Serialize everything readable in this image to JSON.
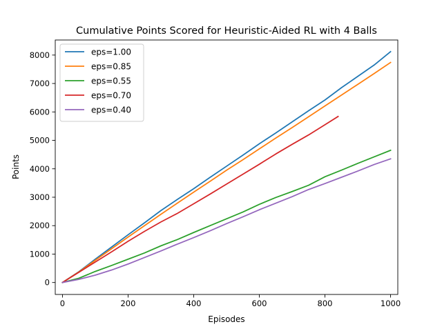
{
  "chart_data": {
    "type": "line",
    "title": "Cumulative Points Scored for Heuristic-Aided RL with 4 Balls",
    "xlabel": "Episodes",
    "ylabel": "Points",
    "xlim": [
      -22,
      1022
    ],
    "ylim": [
      -420,
      8530
    ],
    "xticks": [
      0,
      200,
      400,
      600,
      800,
      1000
    ],
    "xtick_labels": [
      "0",
      "200",
      "400",
      "600",
      "800",
      "1000"
    ],
    "yticks": [
      0,
      1000,
      2000,
      3000,
      4000,
      5000,
      6000,
      7000,
      8000
    ],
    "ytick_labels": [
      "0",
      "1000",
      "2000",
      "3000",
      "4000",
      "5000",
      "6000",
      "7000",
      "8000"
    ],
    "grid": false,
    "legend_position": "upper-left",
    "series": [
      {
        "name": "eps=1.00",
        "color": "#1f77b4",
        "x": [
          0,
          50,
          100,
          150,
          200,
          250,
          300,
          350,
          400,
          450,
          500,
          550,
          600,
          650,
          700,
          750,
          800,
          850,
          900,
          950,
          1000
        ],
        "y": [
          0,
          380,
          820,
          1250,
          1680,
          2100,
          2530,
          2920,
          3300,
          3700,
          4090,
          4480,
          4880,
          5260,
          5650,
          6040,
          6420,
          6850,
          7250,
          7650,
          8120
        ]
      },
      {
        "name": "eps=0.85",
        "color": "#ff7f0e",
        "x": [
          0,
          50,
          100,
          150,
          200,
          250,
          300,
          350,
          400,
          450,
          500,
          550,
          600,
          650,
          700,
          750,
          800,
          850,
          900,
          950,
          1000
        ],
        "y": [
          0,
          370,
          780,
          1190,
          1600,
          2000,
          2400,
          2790,
          3180,
          3560,
          3950,
          4320,
          4700,
          5080,
          5450,
          5830,
          6210,
          6590,
          6970,
          7350,
          7740
        ]
      },
      {
        "name": "eps=0.55",
        "color": "#2ca02c",
        "x": [
          0,
          50,
          100,
          150,
          200,
          250,
          300,
          350,
          400,
          450,
          500,
          550,
          600,
          650,
          700,
          750,
          800,
          850,
          900,
          950,
          1000
        ],
        "y": [
          0,
          150,
          390,
          600,
          820,
          1040,
          1290,
          1510,
          1760,
          2000,
          2240,
          2480,
          2750,
          2990,
          3200,
          3420,
          3720,
          3950,
          4190,
          4420,
          4650
        ]
      },
      {
        "name": "eps=0.70",
        "color": "#d62728",
        "x": [
          0,
          50,
          100,
          150,
          200,
          250,
          300,
          350,
          400,
          450,
          500,
          550,
          600,
          650,
          700,
          750,
          800,
          840
        ],
        "y": [
          0,
          360,
          720,
          1080,
          1450,
          1800,
          2130,
          2430,
          2770,
          3110,
          3460,
          3810,
          4160,
          4520,
          4860,
          5190,
          5550,
          5840
        ]
      },
      {
        "name": "eps=0.40",
        "color": "#9467bd",
        "x": [
          0,
          50,
          100,
          150,
          200,
          250,
          300,
          350,
          400,
          450,
          500,
          550,
          600,
          650,
          700,
          750,
          800,
          850,
          900,
          950,
          1000
        ],
        "y": [
          0,
          110,
          260,
          440,
          650,
          880,
          1110,
          1350,
          1580,
          1820,
          2070,
          2310,
          2560,
          2790,
          3020,
          3270,
          3480,
          3700,
          3920,
          4150,
          4350
        ]
      }
    ]
  }
}
